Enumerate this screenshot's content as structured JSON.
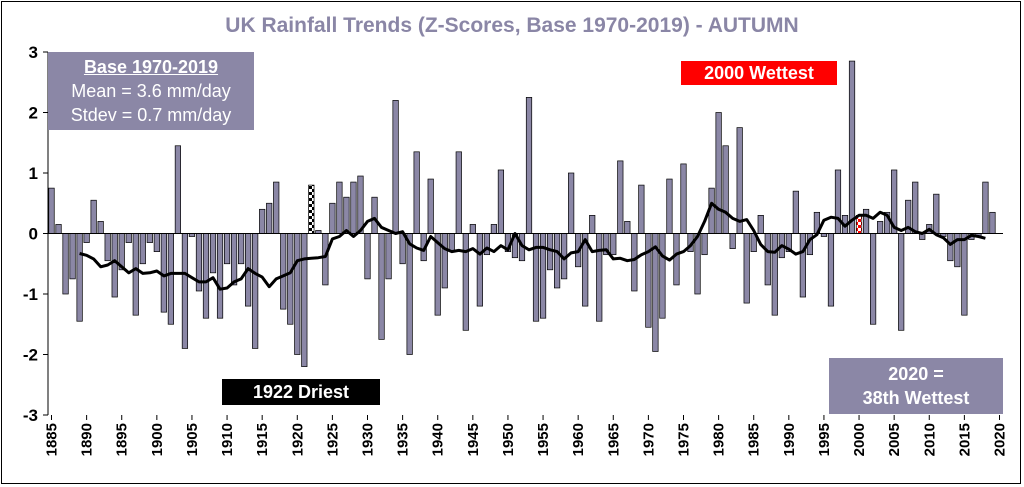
{
  "chart_data": {
    "type": "bar",
    "title": "UK Rainfall Trends (Z-Scores, Base 1970-2019) - AUTUMN",
    "xlabel": "",
    "ylabel": "",
    "ylim": [
      -3,
      3
    ],
    "yticks": [
      -3,
      -2,
      -1,
      0,
      1,
      2,
      3
    ],
    "x_start": 1885,
    "x_end": 2020,
    "xticks": [
      1885,
      1890,
      1895,
      1900,
      1905,
      1910,
      1915,
      1920,
      1925,
      1930,
      1935,
      1940,
      1945,
      1950,
      1955,
      1960,
      1965,
      1970,
      1975,
      1980,
      1985,
      1990,
      1995,
      2000,
      2005,
      2010,
      2015,
      2020
    ],
    "grid": false,
    "colors": {
      "bar": "#8b87a6",
      "bar_edge": "#000000",
      "line": "#000000",
      "wettest": "#ff0000",
      "driest": "#000000"
    },
    "series": [
      {
        "values": [
          0.75,
          0.15,
          -1.0,
          -0.75,
          -1.45,
          -0.15,
          0.55,
          0.2,
          -0.45,
          -1.05,
          -0.6,
          -0.15,
          -1.35,
          -0.5,
          -0.15,
          -0.3,
          -1.3,
          -1.5,
          1.45,
          -1.9,
          -0.05,
          -0.95,
          -1.4,
          -0.65,
          -1.4,
          -0.5,
          -0.85,
          -0.5,
          -1.2,
          -1.9,
          0.4,
          0.5,
          0.85,
          -1.25,
          -1.5,
          -2.0,
          -2.2,
          0.8,
          0.05,
          -0.85,
          0.5,
          0.85,
          0.6,
          0.85,
          0.95,
          -0.75,
          0.6,
          -1.75,
          -0.75,
          2.2,
          -0.5,
          -2.0,
          1.35,
          -0.45,
          0.9,
          -1.35,
          -0.9,
          -0.3,
          1.35,
          -1.6,
          0.15,
          -1.2,
          -0.35,
          0.15,
          1.05,
          -0.3,
          -0.4,
          -0.45,
          2.25,
          -1.45,
          -1.4,
          -0.6,
          -0.9,
          -0.75,
          1.0,
          -0.55,
          -1.2,
          0.3,
          -1.45,
          -0.35,
          -0.35,
          1.2,
          0.2,
          -0.95,
          0.8,
          -1.55,
          -1.95,
          -1.4,
          0.9,
          -0.85,
          1.15,
          -0.3,
          -1.0,
          -0.35,
          0.75,
          2.0,
          1.45,
          -0.25,
          1.75,
          -1.15,
          -0.3,
          0.3,
          -0.85,
          -1.35,
          -0.4,
          -0.3,
          0.7,
          -1.05,
          -0.35,
          0.35,
          -0.05,
          -1.2,
          1.05,
          0.3,
          2.85,
          0.3,
          0.4,
          -1.5,
          0.2,
          0.35,
          1.05,
          -1.6,
          0.55,
          0.85,
          -0.1,
          0.15,
          0.65,
          -0.05,
          -0.45,
          -0.55,
          -1.35,
          -0.1,
          -0.05,
          0.85,
          0.35
        ]
      },
      {
        "name": "",
        "type": "line",
        "x_start": 1889,
        "values": [
          -0.33,
          -0.36,
          -0.42,
          -0.55,
          -0.52,
          -0.45,
          -0.55,
          -0.65,
          -0.58,
          -0.66,
          -0.65,
          -0.62,
          -0.7,
          -0.66,
          -0.66,
          -0.66,
          -0.73,
          -0.8,
          -0.8,
          -0.73,
          -0.92,
          -0.9,
          -0.8,
          -0.75,
          -0.58,
          -0.66,
          -0.72,
          -0.88,
          -0.75,
          -0.7,
          -0.65,
          -0.45,
          -0.42,
          -0.41,
          -0.4,
          -0.38,
          -0.09,
          -0.05,
          0.05,
          -0.05,
          0.05,
          0.2,
          0.25,
          0.1,
          0.05,
          0.0,
          0.03,
          -0.17,
          -0.24,
          -0.28,
          -0.05,
          -0.15,
          -0.25,
          -0.3,
          -0.28,
          -0.3,
          -0.25,
          -0.34,
          -0.24,
          -0.3,
          -0.2,
          -0.27,
          0.0,
          -0.2,
          -0.27,
          -0.23,
          -0.23,
          -0.27,
          -0.3,
          -0.42,
          -0.32,
          -0.3,
          -0.1,
          -0.3,
          -0.28,
          -0.27,
          -0.42,
          -0.41,
          -0.45,
          -0.43,
          -0.35,
          -0.3,
          -0.22,
          -0.37,
          -0.44,
          -0.34,
          -0.3,
          -0.2,
          -0.05,
          0.2,
          0.5,
          0.4,
          0.35,
          0.25,
          0.2,
          0.23,
          0.05,
          -0.18,
          -0.3,
          -0.31,
          -0.2,
          -0.26,
          -0.34,
          -0.3,
          -0.1,
          -0.02,
          0.22,
          0.27,
          0.25,
          0.12,
          0.22,
          0.3,
          0.3,
          0.25,
          0.35,
          0.3,
          0.1,
          0.05,
          0.1,
          0.03,
          0.0,
          0.07,
          -0.02,
          -0.07,
          -0.18,
          -0.1,
          -0.1,
          -0.03,
          -0.05,
          -0.08
        ]
      }
    ],
    "wettest": {
      "year": 2000,
      "label": "2000 Wettest"
    },
    "driest": {
      "year": 1922,
      "label": "1922 Driest"
    },
    "info_box": {
      "header": "Base 1970-2019",
      "mean": "Mean = 3.6 mm/day",
      "stdev": "Stdev = 0.7 mm/day"
    },
    "rank_box": {
      "line1": "2020 =",
      "line2": "38th Wettest"
    }
  }
}
